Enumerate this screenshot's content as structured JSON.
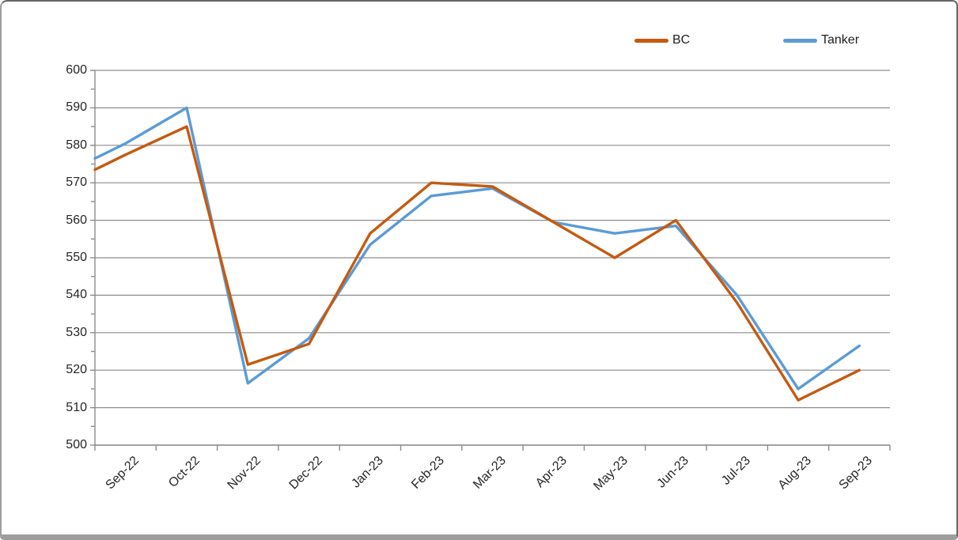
{
  "chart_data": {
    "type": "line",
    "title": "",
    "xlabel": "",
    "ylabel": "",
    "categories": [
      "Sep-22",
      "Oct-22",
      "Nov-22",
      "Dec-22",
      "Jan-23",
      "Feb-23",
      "Mar-23",
      "Apr-23",
      "May-23",
      "Jun-23",
      "Jul-23",
      "Aug-23",
      "Sep-23"
    ],
    "series": [
      {
        "name": "BC",
        "color": "#C55A11",
        "lead_in_value_at_axis": 573.5,
        "values": [
          577.5,
          585,
          521.5,
          527,
          556.5,
          570,
          569,
          559.5,
          550,
          560,
          538,
          512,
          520
        ]
      },
      {
        "name": "Tanker",
        "color": "#5B9BD5",
        "lead_in_value_at_axis": 576.5,
        "values": [
          580.5,
          590,
          516.5,
          528.5,
          553.5,
          566.5,
          568.5,
          559.5,
          556.5,
          558.5,
          540,
          515,
          526.5
        ]
      }
    ],
    "ylim": [
      500,
      600
    ],
    "y_tick_step": 10,
    "y_minor_tick_step": 5,
    "y_tick_labels": [
      "600",
      "590",
      "580",
      "570",
      "560",
      "550",
      "540",
      "530",
      "520",
      "510",
      "500"
    ],
    "grid": true,
    "grid_color": "#8c8c8c",
    "axis_color": "#8c8c8c",
    "tick_label_color": "#262626",
    "legend_position": "top-right",
    "legend_entries": [
      "BC",
      "Tanker"
    ]
  }
}
